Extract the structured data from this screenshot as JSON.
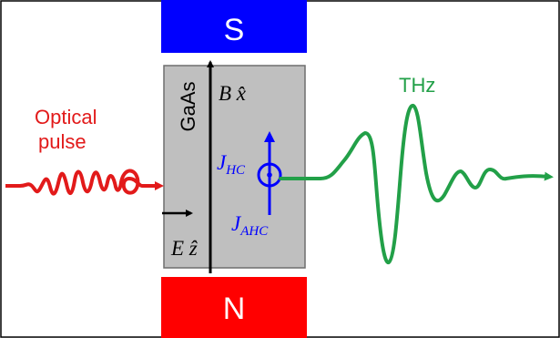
{
  "magnets": {
    "south": {
      "label": "S",
      "color": "#0000FF"
    },
    "north": {
      "label": "N",
      "color": "#FF0000"
    }
  },
  "sample": {
    "label": "GaAs",
    "color": "#BFBFBF"
  },
  "fields": {
    "magnetic": "B x̂",
    "electric": "E ẑ"
  },
  "currents": {
    "hall": "J",
    "hall_sub": "HC",
    "anomalous": "J",
    "anomalous_sub": "AHC",
    "color": "#0000FF"
  },
  "optical": {
    "line1": "Optical",
    "line2": "pulse",
    "color": "#E21A1A"
  },
  "thz": {
    "label": "THz",
    "color": "#22A048"
  }
}
